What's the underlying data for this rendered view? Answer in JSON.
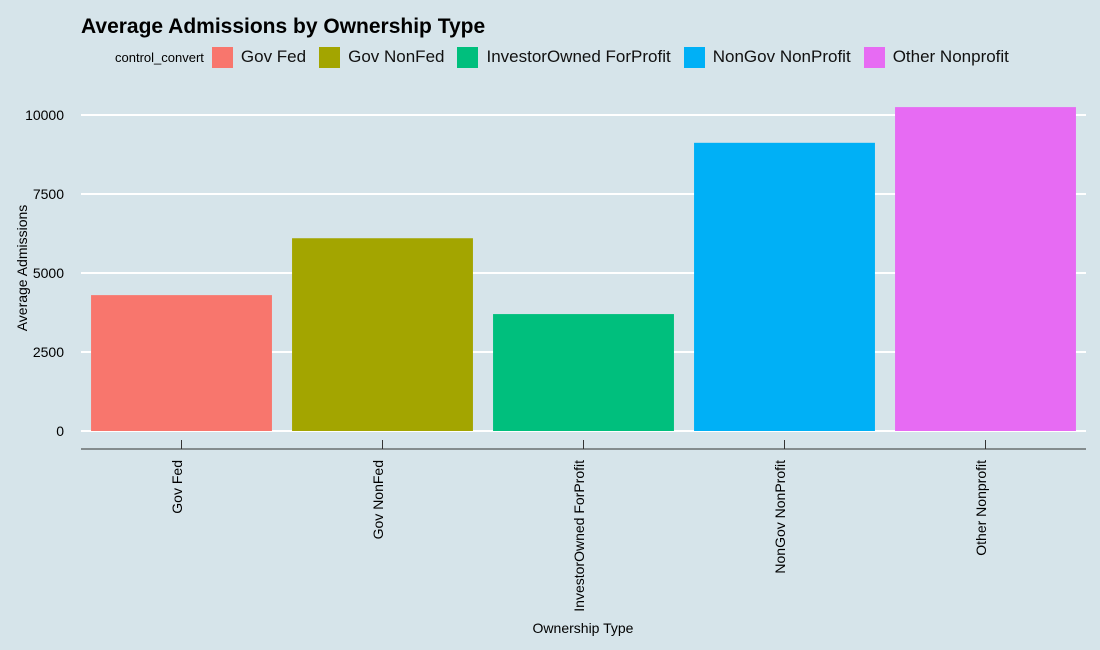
{
  "chart_data": {
    "type": "bar",
    "title": "Average Admissions by Ownership Type",
    "xlabel": "Ownership Type",
    "ylabel": "Average Admissions",
    "categories": [
      "Gov Fed",
      "Gov NonFed",
      "InvestorOwned ForProfit",
      "NonGov NonProfit",
      "Other Nonprofit"
    ],
    "values": [
      4300,
      6100,
      3700,
      9120,
      10250
    ],
    "colors": [
      "#f8766d",
      "#a3a500",
      "#00bf7d",
      "#00b0f6",
      "#e76bf3"
    ],
    "ylim": [
      0,
      10500
    ],
    "yticks": [
      0,
      2500,
      5000,
      7500,
      10000
    ],
    "ytick_labels": [
      "0",
      "2500",
      "5000",
      "7500",
      "10000"
    ],
    "grid": "horizontal",
    "legend": {
      "title": "control_convert",
      "placement": "top",
      "entries": [
        "Gov Fed",
        "Gov NonFed",
        "InvestorOwned ForProfit",
        "NonGov NonProfit",
        "Other Nonprofit"
      ]
    },
    "background": "#d6e4ea",
    "gridline_color": "#ffffff"
  }
}
